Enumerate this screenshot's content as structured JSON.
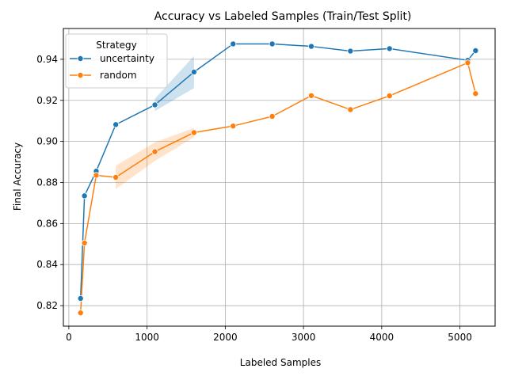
{
  "chart_data": {
    "type": "line",
    "title": "Accuracy vs Labeled Samples (Train/Test Split)",
    "xlabel": "Labeled Samples",
    "ylabel": "Final Accuracy",
    "xlim": [
      -70,
      5450
    ],
    "ylim": [
      0.81,
      0.955
    ],
    "xticks": [
      0,
      1000,
      2000,
      3000,
      4000,
      5000
    ],
    "xtick_labels": [
      "0",
      "1000",
      "2000",
      "3000",
      "4000",
      "5000"
    ],
    "yticks": [
      0.82,
      0.84,
      0.86,
      0.88,
      0.9,
      0.92,
      0.94
    ],
    "ytick_labels": [
      "0.82",
      "0.84",
      "0.86",
      "0.88",
      "0.90",
      "0.92",
      "0.94"
    ],
    "grid": true,
    "legend": {
      "title": "Strategy",
      "placement": "top-left"
    },
    "series": [
      {
        "name": "uncertainty",
        "color": "#1f77b4",
        "points": [
          {
            "x": 150,
            "y": 0.8235
          },
          {
            "x": 200,
            "y": 0.8735
          },
          {
            "x": 350,
            "y": 0.8855
          },
          {
            "x": 600,
            "y": 0.9082
          },
          {
            "x": 1100,
            "y": 0.9178
          },
          {
            "x": 1600,
            "y": 0.9338
          },
          {
            "x": 2100,
            "y": 0.9475
          },
          {
            "x": 2600,
            "y": 0.9475
          },
          {
            "x": 3100,
            "y": 0.9463
          },
          {
            "x": 3600,
            "y": 0.944
          },
          {
            "x": 4100,
            "y": 0.9452
          },
          {
            "x": 5100,
            "y": 0.9395
          },
          {
            "x": 5200,
            "y": 0.9442
          }
        ],
        "band": [
          {
            "x": 1100,
            "lo": 0.9148,
            "hi": 0.9208
          },
          {
            "x": 1600,
            "lo": 0.926,
            "hi": 0.9416
          }
        ]
      },
      {
        "name": "random",
        "color": "#ff7f0e",
        "points": [
          {
            "x": 150,
            "y": 0.8165
          },
          {
            "x": 200,
            "y": 0.8505
          },
          {
            "x": 350,
            "y": 0.8835
          },
          {
            "x": 600,
            "y": 0.8825
          },
          {
            "x": 1100,
            "y": 0.895
          },
          {
            "x": 1600,
            "y": 0.9043
          },
          {
            "x": 2100,
            "y": 0.9075
          },
          {
            "x": 2600,
            "y": 0.9122
          },
          {
            "x": 3100,
            "y": 0.9223
          },
          {
            "x": 3600,
            "y": 0.9155
          },
          {
            "x": 4100,
            "y": 0.9222
          },
          {
            "x": 5100,
            "y": 0.9383
          },
          {
            "x": 5200,
            "y": 0.9233
          }
        ],
        "band": [
          {
            "x": 600,
            "lo": 0.8768,
            "hi": 0.8882
          },
          {
            "x": 1100,
            "lo": 0.8905,
            "hi": 0.8995
          },
          {
            "x": 1600,
            "lo": 0.902,
            "hi": 0.9066
          }
        ]
      }
    ]
  }
}
